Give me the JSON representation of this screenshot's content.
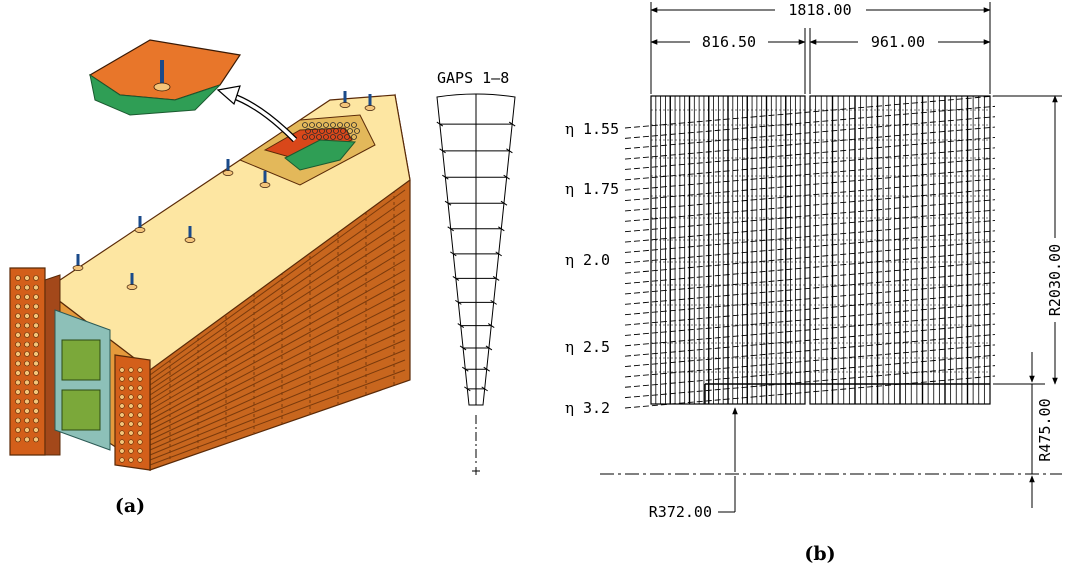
{
  "panel_a": {
    "caption": "(a)",
    "gaps_label": "GAPS 1–8",
    "module": {
      "side_color": "#c8661e",
      "top_color": "#fde6a2",
      "slab_color": "#e3b85a",
      "board_color": "#8dc0b8",
      "copper_color": "#d9471a",
      "green_color": "#2f9e55"
    }
  },
  "panel_b": {
    "caption": "(b)",
    "dims": {
      "total_length": "1818.00",
      "wheel1_length": "816.50",
      "wheel2_length": "961.00",
      "outer_radius": "R2030.00",
      "inner_offset": "R475.00",
      "inner_radius": "R372.00"
    },
    "eta_labels": [
      {
        "symbol": "η",
        "value": "1.55"
      },
      {
        "symbol": "η",
        "value": "1.75"
      },
      {
        "symbol": "η",
        "value": "2.0"
      },
      {
        "symbol": "η",
        "value": "2.5"
      },
      {
        "symbol": "η",
        "value": "3.2"
      }
    ]
  }
}
